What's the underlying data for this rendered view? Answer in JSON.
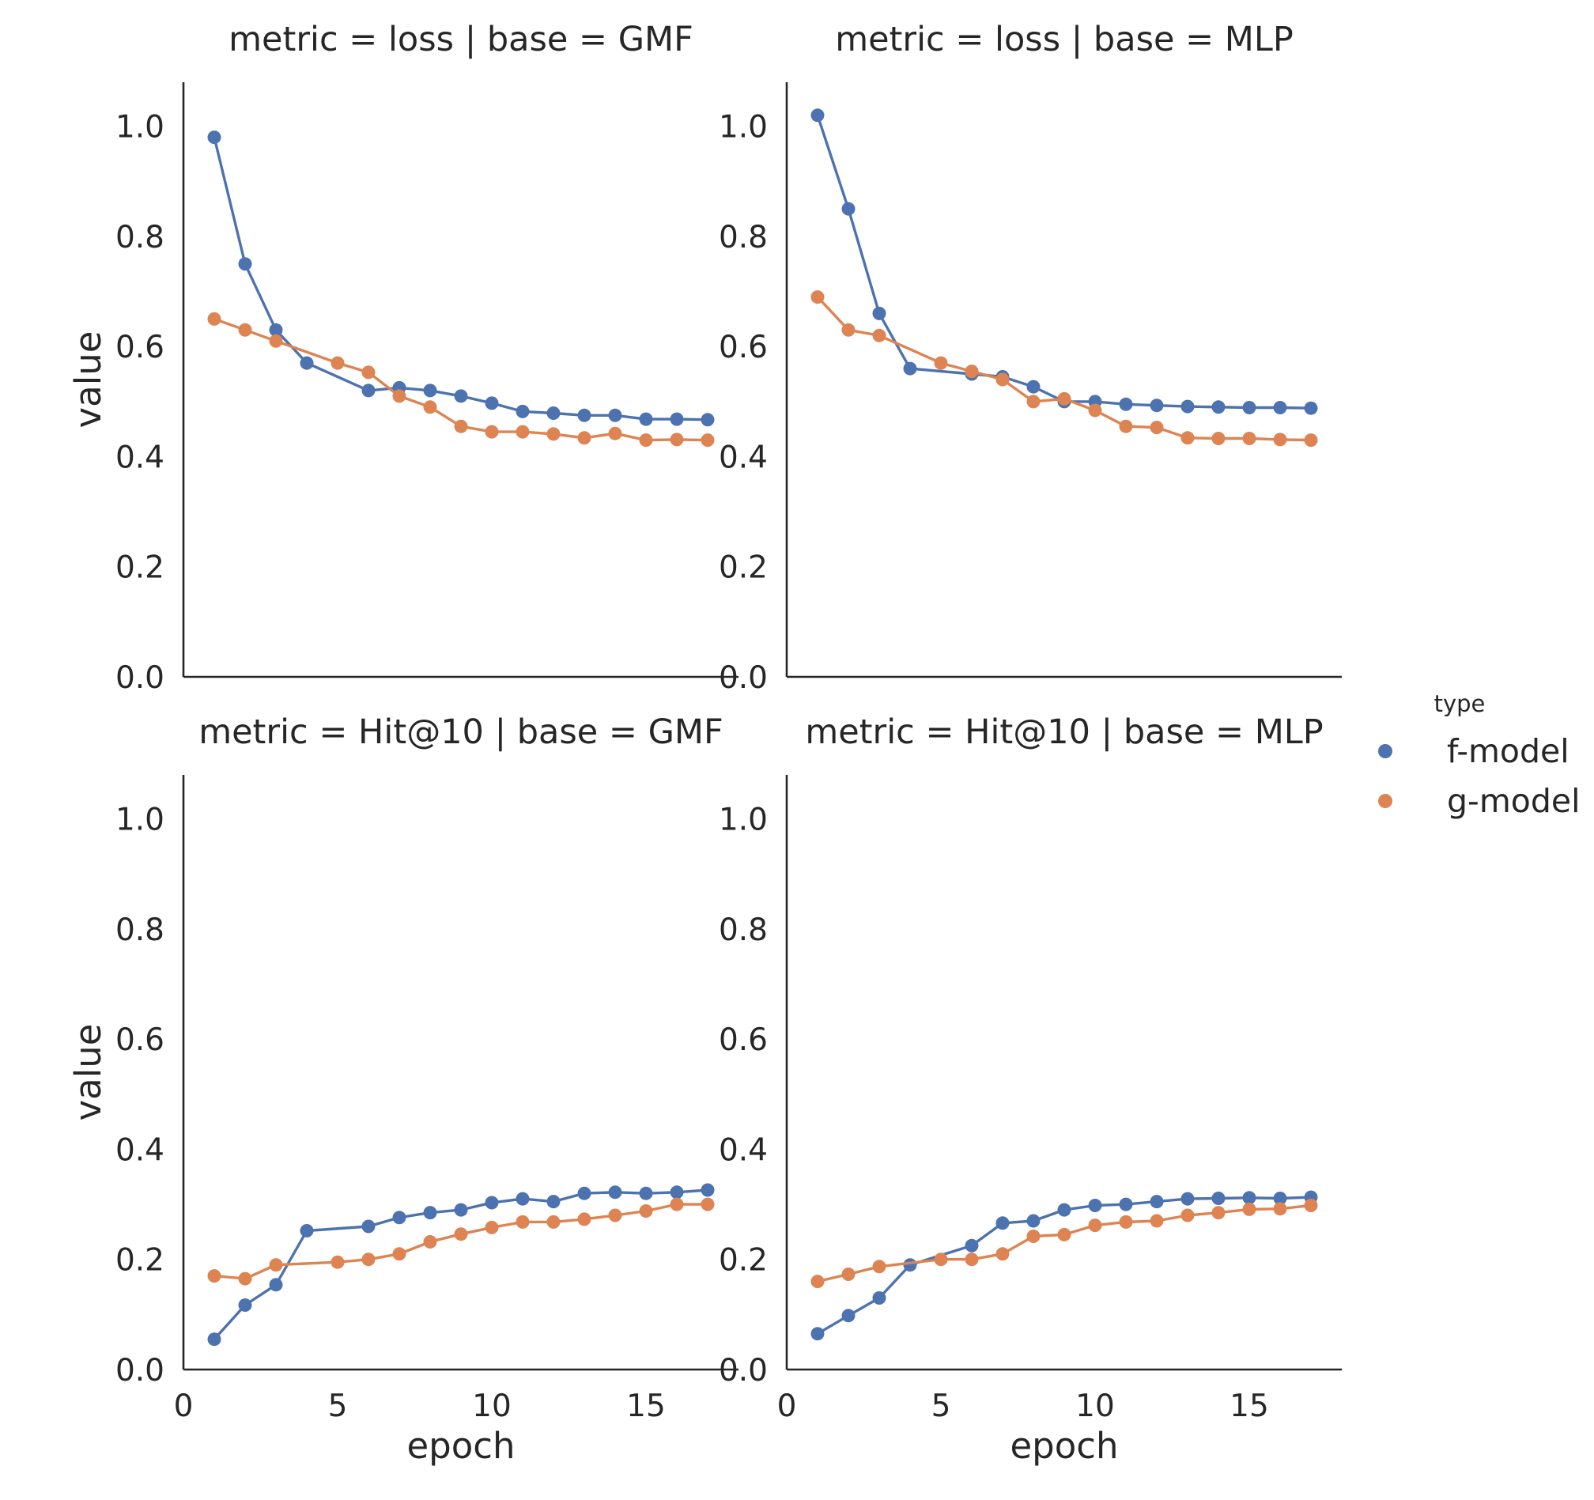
{
  "chart_data": {
    "type": "line",
    "xlabel": "epoch",
    "ylabel": "value",
    "xlim": [
      0,
      18
    ],
    "ylim": [
      0,
      1.08
    ],
    "xticks": [
      0,
      5,
      10,
      15
    ],
    "yticks": [
      0.0,
      0.2,
      0.4,
      0.6,
      0.8,
      1.0
    ],
    "xtick_labels": [
      "0",
      "5",
      "10",
      "15"
    ],
    "ytick_labels": [
      "0.0",
      "0.2",
      "0.4",
      "0.6",
      "0.8",
      "1.0"
    ],
    "legend": {
      "title": "type",
      "placement": "right",
      "entries": [
        {
          "label": "f-model",
          "color": "#4c72b0"
        },
        {
          "label": "g-model",
          "color": "#dd8452"
        }
      ]
    },
    "x": [
      1,
      2,
      3,
      4,
      5,
      6,
      7,
      8,
      9,
      10,
      11,
      12,
      13,
      14,
      15,
      16,
      17
    ],
    "panels": [
      {
        "title": "metric = loss | base = GMF",
        "series": [
          {
            "name": "f-model",
            "values": [
              0.98,
              0.75,
              0.63,
              0.57,
              null,
              0.52,
              0.525,
              0.52,
              0.51,
              0.497,
              0.482,
              0.479,
              0.475,
              0.475,
              0.468,
              0.468,
              0.467
            ]
          },
          {
            "name": "g-model",
            "values": [
              0.65,
              0.63,
              0.61,
              null,
              0.57,
              0.553,
              0.51,
              0.49,
              0.455,
              0.445,
              0.445,
              0.441,
              0.434,
              0.442,
              0.43,
              0.431,
              0.43
            ]
          }
        ]
      },
      {
        "title": "metric = loss | base = MLP",
        "series": [
          {
            "name": "f-model",
            "values": [
              1.02,
              0.85,
              0.66,
              0.56,
              null,
              0.55,
              0.545,
              0.527,
              0.5,
              0.5,
              0.495,
              0.493,
              0.491,
              0.49,
              0.489,
              0.489,
              0.488
            ]
          },
          {
            "name": "g-model",
            "values": [
              0.69,
              0.63,
              0.62,
              null,
              0.57,
              0.555,
              0.54,
              0.5,
              0.505,
              0.484,
              0.455,
              0.453,
              0.434,
              0.433,
              0.433,
              0.431,
              0.43
            ]
          }
        ]
      },
      {
        "title": "metric = Hit@10 | base = GMF",
        "series": [
          {
            "name": "f-model",
            "values": [
              0.055,
              0.117,
              0.154,
              0.252,
              null,
              0.26,
              0.276,
              0.285,
              0.29,
              0.303,
              0.31,
              0.305,
              0.32,
              0.322,
              0.32,
              0.322,
              0.326
            ]
          },
          {
            "name": "g-model",
            "values": [
              0.17,
              0.165,
              0.19,
              null,
              0.195,
              0.2,
              0.21,
              0.232,
              0.246,
              0.258,
              0.268,
              0.268,
              0.273,
              0.28,
              0.288,
              0.3,
              0.3
            ]
          }
        ]
      },
      {
        "title": "metric = Hit@10 | base = MLP",
        "series": [
          {
            "name": "f-model",
            "values": [
              0.065,
              0.098,
              0.13,
              0.19,
              null,
              0.225,
              0.266,
              0.27,
              0.29,
              0.298,
              0.3,
              0.305,
              0.31,
              0.311,
              0.312,
              0.311,
              0.313
            ]
          },
          {
            "name": "g-model",
            "values": [
              0.16,
              0.173,
              0.187,
              null,
              0.2,
              0.2,
              0.21,
              0.242,
              0.245,
              0.262,
              0.268,
              0.27,
              0.28,
              0.285,
              0.291,
              0.292,
              0.298
            ]
          }
        ]
      }
    ]
  }
}
